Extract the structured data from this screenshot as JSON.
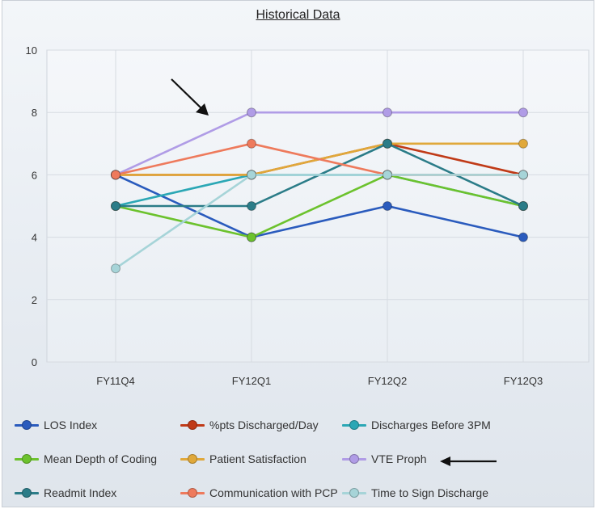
{
  "chart_data": {
    "type": "line",
    "title": "Historical Data",
    "categories": [
      "FY11Q4",
      "FY12Q1",
      "FY12Q2",
      "FY12Q3"
    ],
    "ylim": [
      0,
      10
    ],
    "yticks": [
      0,
      2,
      4,
      6,
      8,
      10
    ],
    "grid": true,
    "legend_position": "bottom",
    "series": [
      {
        "name": "LOS Index",
        "color": "#2a5bbd",
        "values": [
          6,
          4,
          5,
          4
        ]
      },
      {
        "name": "%pts Discharged/Day",
        "color": "#c03a17",
        "values": [
          6,
          6,
          7,
          6
        ]
      },
      {
        "name": "Discharges Before 3PM",
        "color": "#2ba7b5",
        "values": [
          5,
          6,
          6,
          5
        ]
      },
      {
        "name": "Mean Depth of Coding",
        "color": "#6cc22d",
        "values": [
          5,
          4,
          6,
          5
        ]
      },
      {
        "name": "Patient Satisfaction",
        "color": "#e0a83a",
        "values": [
          6,
          6,
          7,
          7
        ]
      },
      {
        "name": "VTE Proph",
        "color": "#b09ce6",
        "values": [
          6,
          8,
          8,
          8
        ]
      },
      {
        "name": "Readmit Index",
        "color": "#2b7c88",
        "values": [
          5,
          5,
          7,
          5
        ]
      },
      {
        "name": "Communication with PCP",
        "color": "#ee7a5c",
        "values": [
          6,
          7,
          6,
          6
        ]
      },
      {
        "name": "Time to Sign Discharge",
        "color": "#a6d4d8",
        "values": [
          3,
          6,
          6,
          6
        ]
      }
    ]
  }
}
